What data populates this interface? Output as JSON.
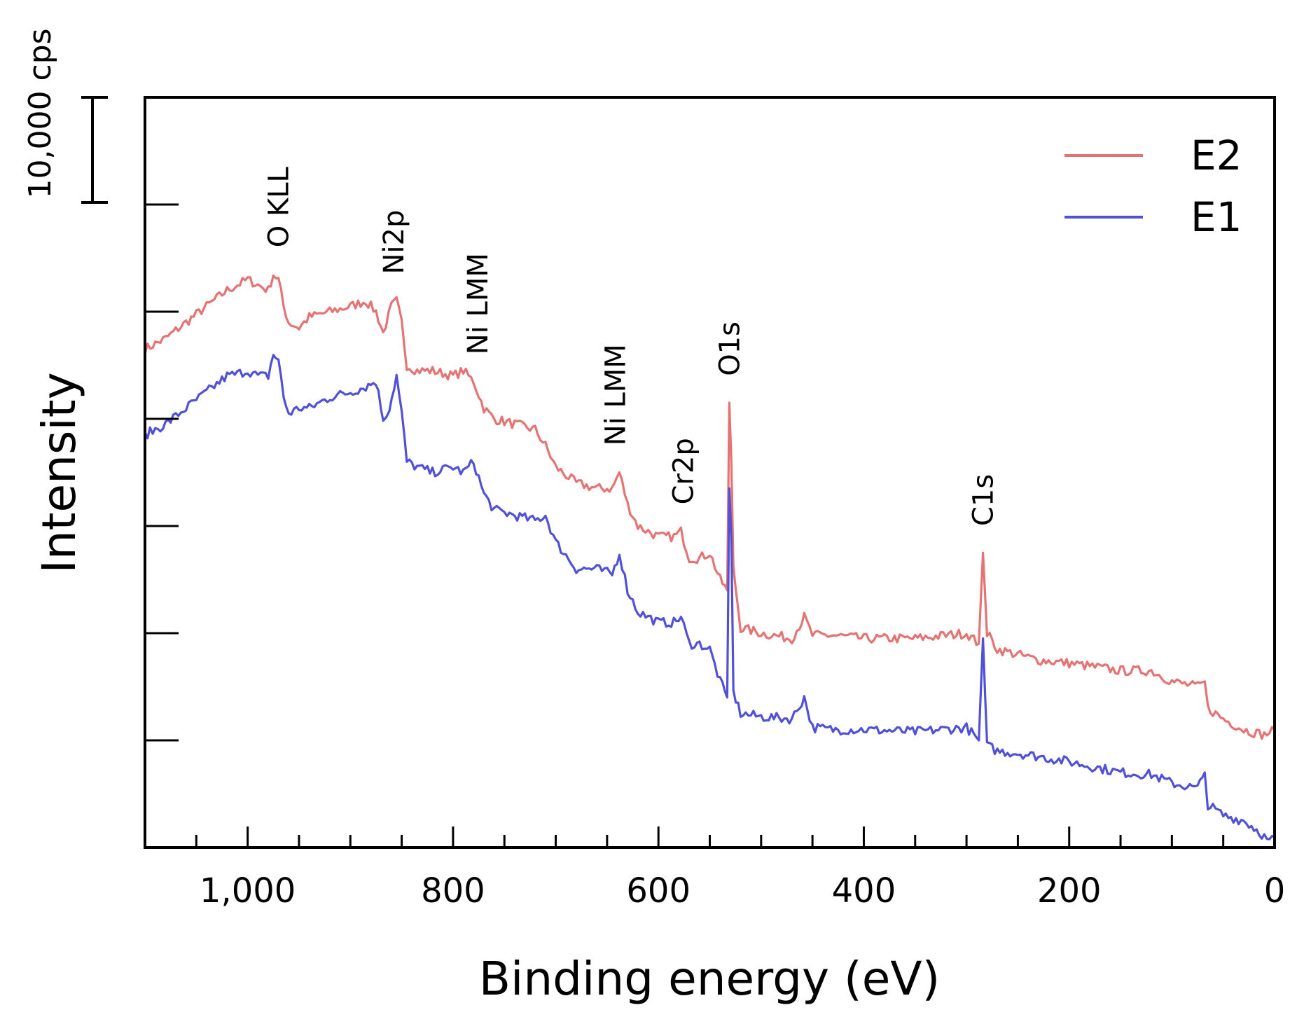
{
  "chart_data": {
    "type": "line",
    "title": "",
    "xlabel": "Binding energy (eV)",
    "ylabel": "Intensity",
    "xlim": [
      1100,
      0
    ],
    "x_reversed": true,
    "x_ticks": [
      1000,
      800,
      600,
      400,
      200,
      0
    ],
    "x_tick_labels": [
      "1,000",
      "800",
      "600",
      "400",
      "200",
      "0"
    ],
    "x_minor_step": 50,
    "ylim": [
      -1,
      6
    ],
    "y_tick_values": [
      0,
      1,
      2,
      3,
      4,
      5,
      6
    ],
    "y_tick_unit_cps": 10000,
    "y_tick_labels_shown": false,
    "scale_bar": {
      "label": "10,000 cps",
      "value_cps": 10000
    },
    "grid": false,
    "legend": {
      "position": "top-right",
      "entries": [
        "E2",
        "E1"
      ]
    },
    "series": [
      {
        "name": "E2",
        "color": "#e57373",
        "points": [
          [
            1100,
            3.65
          ],
          [
            1080,
            3.75
          ],
          [
            1060,
            3.9
          ],
          [
            1040,
            4.05
          ],
          [
            1020,
            4.2
          ],
          [
            1010,
            4.25
          ],
          [
            1000,
            4.3
          ],
          [
            990,
            4.25
          ],
          [
            980,
            4.2
          ],
          [
            975,
            4.35
          ],
          [
            970,
            4.3
          ],
          [
            965,
            4.05
          ],
          [
            960,
            3.9
          ],
          [
            950,
            3.85
          ],
          [
            940,
            3.95
          ],
          [
            920,
            4.0
          ],
          [
            900,
            4.05
          ],
          [
            885,
            4.1
          ],
          [
            875,
            4.0
          ],
          [
            868,
            3.8
          ],
          [
            860,
            4.05
          ],
          [
            855,
            4.1
          ],
          [
            850,
            3.9
          ],
          [
            845,
            3.5
          ],
          [
            835,
            3.45
          ],
          [
            820,
            3.45
          ],
          [
            800,
            3.4
          ],
          [
            790,
            3.45
          ],
          [
            780,
            3.35
          ],
          [
            770,
            3.1
          ],
          [
            760,
            3.0
          ],
          [
            740,
            2.95
          ],
          [
            720,
            2.9
          ],
          [
            710,
            2.75
          ],
          [
            700,
            2.55
          ],
          [
            680,
            2.4
          ],
          [
            660,
            2.35
          ],
          [
            645,
            2.35
          ],
          [
            638,
            2.5
          ],
          [
            630,
            2.2
          ],
          [
            620,
            2.0
          ],
          [
            600,
            1.9
          ],
          [
            585,
            1.9
          ],
          [
            578,
            1.95
          ],
          [
            570,
            1.7
          ],
          [
            560,
            1.7
          ],
          [
            550,
            1.75
          ],
          [
            540,
            1.5
          ],
          [
            533,
            1.4
          ],
          [
            531,
            3.15
          ],
          [
            529,
            2.6
          ],
          [
            527,
            1.6
          ],
          [
            520,
            1.05
          ],
          [
            500,
            1.0
          ],
          [
            470,
            0.95
          ],
          [
            458,
            1.15
          ],
          [
            450,
            0.98
          ],
          [
            430,
            0.98
          ],
          [
            400,
            0.95
          ],
          [
            350,
            0.95
          ],
          [
            300,
            1.0
          ],
          [
            288,
            0.9
          ],
          [
            284,
            1.75
          ],
          [
            280,
            1.0
          ],
          [
            270,
            0.85
          ],
          [
            250,
            0.8
          ],
          [
            230,
            0.75
          ],
          [
            200,
            0.72
          ],
          [
            150,
            0.65
          ],
          [
            120,
            0.65
          ],
          [
            100,
            0.55
          ],
          [
            75,
            0.5
          ],
          [
            68,
            0.55
          ],
          [
            65,
            0.3
          ],
          [
            50,
            0.2
          ],
          [
            30,
            0.1
          ],
          [
            10,
            0.05
          ],
          [
            0,
            0.1
          ]
        ]
      },
      {
        "name": "E1",
        "color": "#5050d8",
        "points": [
          [
            1100,
            2.85
          ],
          [
            1080,
            2.95
          ],
          [
            1060,
            3.1
          ],
          [
            1040,
            3.25
          ],
          [
            1020,
            3.4
          ],
          [
            1010,
            3.42
          ],
          [
            1000,
            3.45
          ],
          [
            990,
            3.4
          ],
          [
            980,
            3.4
          ],
          [
            975,
            3.6
          ],
          [
            970,
            3.55
          ],
          [
            965,
            3.2
          ],
          [
            960,
            3.05
          ],
          [
            950,
            3.1
          ],
          [
            940,
            3.1
          ],
          [
            920,
            3.2
          ],
          [
            900,
            3.25
          ],
          [
            885,
            3.3
          ],
          [
            875,
            3.35
          ],
          [
            868,
            3.0
          ],
          [
            862,
            3.1
          ],
          [
            855,
            3.4
          ],
          [
            850,
            3.05
          ],
          [
            845,
            2.6
          ],
          [
            835,
            2.55
          ],
          [
            820,
            2.5
          ],
          [
            800,
            2.55
          ],
          [
            790,
            2.5
          ],
          [
            780,
            2.6
          ],
          [
            770,
            2.3
          ],
          [
            760,
            2.15
          ],
          [
            740,
            2.1
          ],
          [
            720,
            2.05
          ],
          [
            710,
            2.1
          ],
          [
            700,
            1.85
          ],
          [
            680,
            1.6
          ],
          [
            660,
            1.6
          ],
          [
            645,
            1.55
          ],
          [
            638,
            1.75
          ],
          [
            630,
            1.4
          ],
          [
            620,
            1.2
          ],
          [
            600,
            1.1
          ],
          [
            585,
            1.1
          ],
          [
            578,
            1.15
          ],
          [
            570,
            0.9
          ],
          [
            560,
            0.9
          ],
          [
            550,
            0.85
          ],
          [
            540,
            0.55
          ],
          [
            533,
            0.4
          ],
          [
            531,
            2.35
          ],
          [
            529,
            1.9
          ],
          [
            527,
            0.45
          ],
          [
            520,
            0.25
          ],
          [
            500,
            0.22
          ],
          [
            470,
            0.2
          ],
          [
            458,
            0.4
          ],
          [
            450,
            0.12
          ],
          [
            430,
            0.1
          ],
          [
            400,
            0.1
          ],
          [
            350,
            0.08
          ],
          [
            300,
            0.12
          ],
          [
            288,
            0.0
          ],
          [
            284,
            0.95
          ],
          [
            280,
            -0.05
          ],
          [
            270,
            -0.1
          ],
          [
            250,
            -0.12
          ],
          [
            230,
            -0.15
          ],
          [
            200,
            -0.2
          ],
          [
            150,
            -0.3
          ],
          [
            120,
            -0.32
          ],
          [
            100,
            -0.4
          ],
          [
            75,
            -0.45
          ],
          [
            68,
            -0.3
          ],
          [
            65,
            -0.6
          ],
          [
            50,
            -0.7
          ],
          [
            30,
            -0.75
          ],
          [
            15,
            -0.85
          ],
          [
            5,
            -0.95
          ],
          [
            0,
            -0.9
          ]
        ]
      }
    ],
    "annotations": [
      {
        "text": "O KLL",
        "x": 970
      },
      {
        "text": "Ni2p",
        "x": 858
      },
      {
        "text": "Ni LMM",
        "x": 776
      },
      {
        "text": "Ni LMM",
        "x": 642
      },
      {
        "text": "Cr2p",
        "x": 576
      },
      {
        "text": "O1s",
        "x": 531
      },
      {
        "text": "C1s",
        "x": 284
      }
    ]
  }
}
